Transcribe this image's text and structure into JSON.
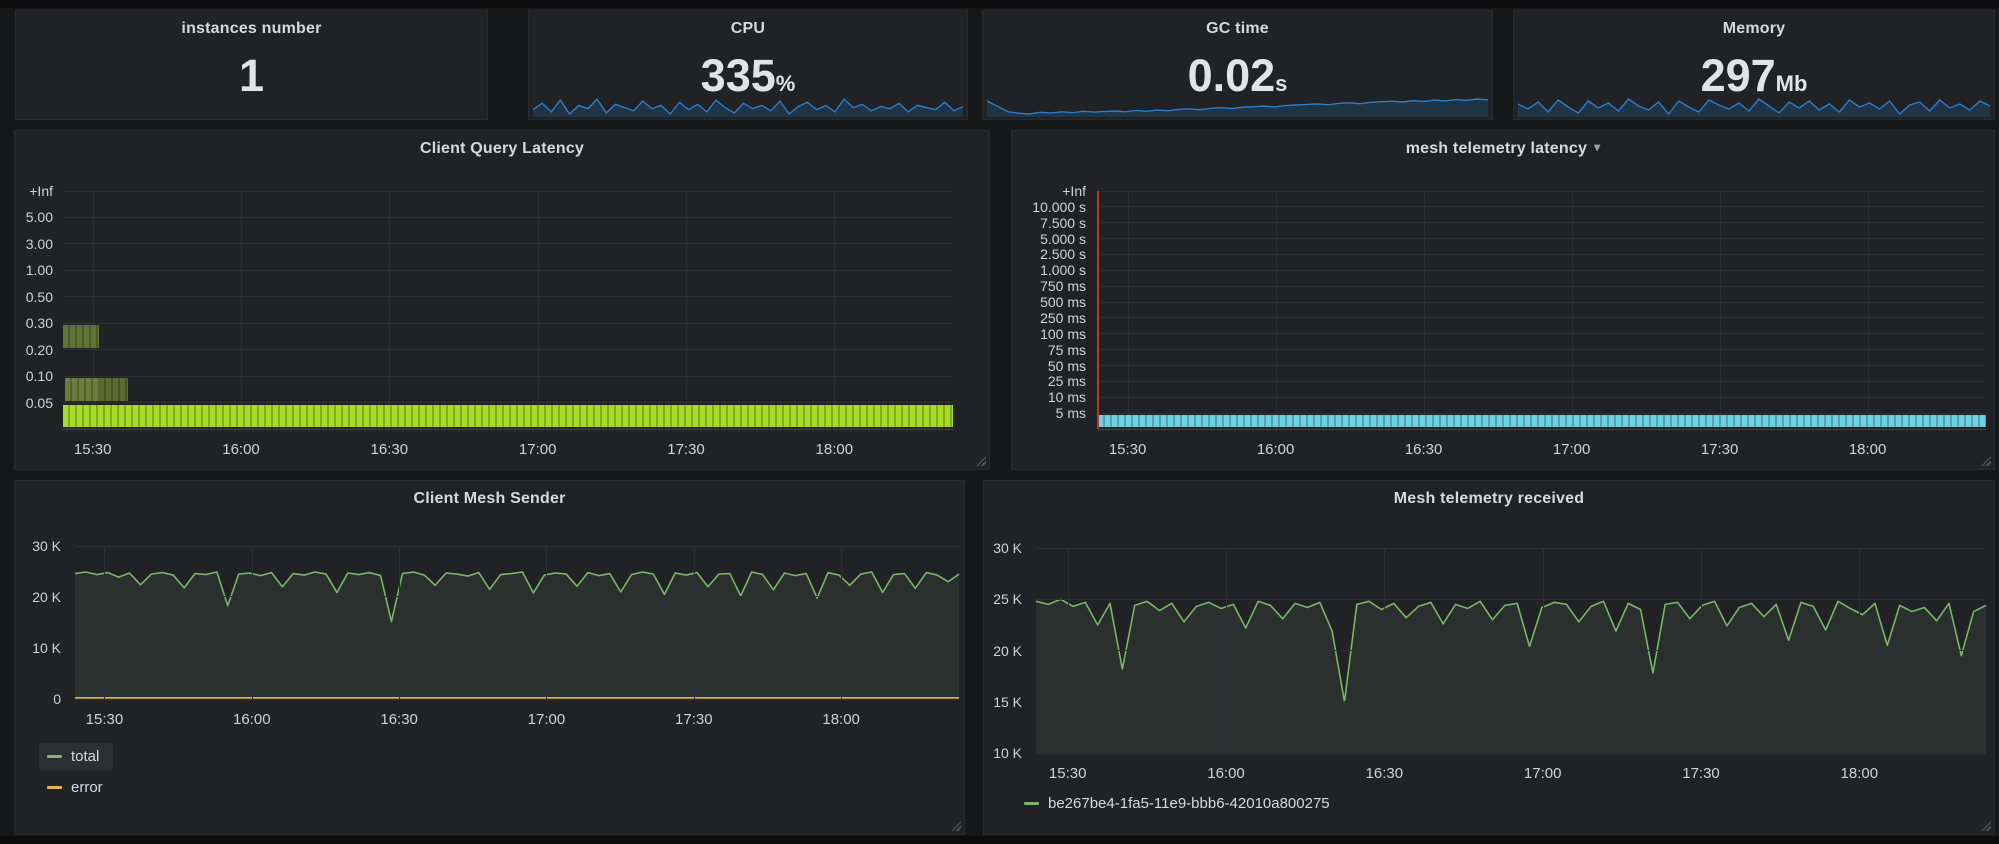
{
  "stat_panels": [
    {
      "title": "instances number",
      "value": "1",
      "unit": ""
    },
    {
      "title": "CPU",
      "value": "335",
      "unit": "%"
    },
    {
      "title": "GC time",
      "value": "0.02",
      "unit": "s"
    },
    {
      "title": "Memory",
      "value": "297",
      "unit": "Mb"
    }
  ],
  "chart_data": [
    {
      "id": "cpu-sparkline",
      "type": "line",
      "title": "CPU",
      "unit": "%",
      "current": 335,
      "color": "#2e7cc3",
      "fill": "rgba(31,120,193,0.22)",
      "values": [
        332,
        338,
        330,
        341,
        328,
        336,
        333,
        342,
        329,
        337,
        334,
        331,
        340,
        333,
        336,
        328,
        339,
        332,
        337,
        330,
        341,
        334,
        329,
        338,
        333,
        336,
        331,
        340,
        328,
        335,
        339,
        332,
        336,
        330,
        342,
        334,
        337,
        331,
        335,
        333,
        338,
        330,
        336,
        334,
        332,
        339,
        331,
        335
      ]
    },
    {
      "id": "gc-time-sparkline",
      "type": "line",
      "title": "GC time",
      "unit": "s",
      "current": 0.02,
      "color": "#2e7cc3",
      "fill": "rgba(31,120,193,0.22)",
      "values": [
        0.02,
        0.018,
        0.016,
        0.0155,
        0.0152,
        0.0158,
        0.0156,
        0.016,
        0.0157,
        0.0162,
        0.0159,
        0.0161,
        0.0163,
        0.016,
        0.0165,
        0.0162,
        0.0167,
        0.0164,
        0.0169,
        0.0171,
        0.0168,
        0.0173,
        0.0175,
        0.0172,
        0.0177,
        0.0179,
        0.0181,
        0.0178,
        0.0183,
        0.0185,
        0.0187,
        0.0189,
        0.0186,
        0.0191,
        0.0193,
        0.019,
        0.0195,
        0.0197,
        0.0199,
        0.0196,
        0.0201,
        0.0198,
        0.0203,
        0.02,
        0.0205,
        0.0202,
        0.0207,
        0.0204
      ]
    },
    {
      "id": "memory-sparkline",
      "type": "line",
      "title": "Memory",
      "unit": "Mb",
      "current": 297,
      "color": "#2e7cc3",
      "fill": "rgba(31,120,193,0.22)",
      "values": [
        293,
        288,
        295,
        285,
        297,
        290,
        284,
        296,
        289,
        294,
        286,
        298,
        291,
        287,
        295,
        283,
        296,
        290,
        285,
        297,
        292,
        288,
        294,
        286,
        298,
        291,
        284,
        295,
        289,
        296,
        287,
        293,
        285,
        297,
        290,
        294,
        288,
        296,
        283,
        292,
        295,
        286,
        297,
        289,
        293,
        287,
        296,
        291
      ]
    },
    {
      "id": "client-query-latency",
      "type": "heatmap",
      "title": "Client Query Latency",
      "x_ticks": [
        "15:30",
        "16:00",
        "16:30",
        "17:00",
        "17:30",
        "18:00"
      ],
      "y_bucket_bounds": [
        "+Inf",
        "5.00",
        "3.00",
        "1.00",
        "0.50",
        "0.30",
        "0.20",
        "0.10",
        "0.05"
      ],
      "cells": [
        {
          "bucket": "0.20-0.30",
          "row": 5,
          "x0": 0.0,
          "x1": 0.041,
          "color": "#5f7334"
        },
        {
          "bucket": "0.05-0.10",
          "row": 7,
          "x0": 0.002,
          "x1": 0.041,
          "color": "#6b7d3a"
        },
        {
          "bucket": "0.05-0.10",
          "row": 7,
          "x0": 0.041,
          "x1": 0.073,
          "color": "#596b2e"
        },
        {
          "bucket": "0.00-0.05",
          "row": 8,
          "x0": 0.0,
          "x1": 1.0,
          "color": "#a7dc26"
        }
      ]
    },
    {
      "id": "mesh-telemetry-latency",
      "type": "heatmap",
      "title": "mesh telemetry latency",
      "caret": "▾",
      "x_ticks": [
        "15:30",
        "16:00",
        "16:30",
        "17:00",
        "17:30",
        "18:00"
      ],
      "y_bucket_bounds": [
        "+Inf",
        "10.000 s",
        "7.500 s",
        "5.000 s",
        "2.500 s",
        "1.000 s",
        "750 ms",
        "500 ms",
        "250 ms",
        "100 ms",
        "75 ms",
        "50 ms",
        "25 ms",
        "10 ms",
        "5 ms"
      ],
      "inf_marker_color": "#b5382e",
      "cells": [
        {
          "bucket": "0-5 ms",
          "row": 14,
          "x0": 0.0,
          "x1": 1.0,
          "color": "#6ed0e0"
        }
      ]
    },
    {
      "id": "client-mesh-sender",
      "type": "line",
      "title": "Client Mesh Sender",
      "x_ticks": [
        "15:30",
        "16:00",
        "16:30",
        "17:00",
        "17:30",
        "18:00"
      ],
      "y_ticks": [
        "30 K",
        "20 K",
        "10 K",
        "0"
      ],
      "ylim": [
        0,
        30
      ],
      "unit": "K",
      "series": [
        {
          "name": "total",
          "color": "#7eb26d",
          "fill_opacity": 0.1,
          "values": [
            24.6,
            24.9,
            24.4,
            24.8,
            23.9,
            24.7,
            22.4,
            24.5,
            24.8,
            24.3,
            21.8,
            24.6,
            24.4,
            24.9,
            18.3,
            24.5,
            24.7,
            24.2,
            24.8,
            22.0,
            24.6,
            24.3,
            24.9,
            24.5,
            20.9,
            24.7,
            24.4,
            24.8,
            24.2,
            15.2,
            24.6,
            24.9,
            24.3,
            22.3,
            24.7,
            24.5,
            24.1,
            24.8,
            21.5,
            24.4,
            24.6,
            24.9,
            20.8,
            24.3,
            24.7,
            24.5,
            22.1,
            24.8,
            24.2,
            24.6,
            21.0,
            24.4,
            24.9,
            24.5,
            20.5,
            24.7,
            24.3,
            24.8,
            22.0,
            24.5,
            24.6,
            20.2,
            24.9,
            24.4,
            21.4,
            24.7,
            24.2,
            24.6,
            19.8,
            24.8,
            24.3,
            22.3,
            24.5,
            24.9,
            20.9,
            24.4,
            24.6,
            21.7,
            24.8,
            24.3,
            23.0,
            24.5
          ]
        },
        {
          "name": "error",
          "color": "#eab839",
          "fill_opacity": 0,
          "values": [
            0,
            0
          ]
        }
      ]
    },
    {
      "id": "mesh-telemetry-received",
      "type": "line",
      "title": "Mesh telemetry received",
      "x_ticks": [
        "15:30",
        "16:00",
        "16:30",
        "17:00",
        "17:30",
        "18:00"
      ],
      "y_ticks": [
        "30 K",
        "25 K",
        "20 K",
        "15 K",
        "10 K"
      ],
      "ylim": [
        10,
        30
      ],
      "unit": "K",
      "series": [
        {
          "name": "be267be4-1fa5-11e9-bbb6-42010a800275",
          "color": "#7eb26d",
          "fill_opacity": 0.1,
          "values": [
            24.8,
            24.5,
            25.0,
            24.3,
            24.7,
            22.5,
            24.6,
            18.2,
            24.4,
            24.8,
            23.9,
            24.6,
            22.8,
            24.3,
            24.7,
            24.1,
            24.5,
            22.2,
            24.8,
            24.4,
            23.1,
            24.6,
            24.2,
            24.7,
            21.9,
            15.0,
            24.5,
            24.8,
            24.0,
            24.6,
            23.2,
            24.3,
            24.7,
            22.6,
            24.5,
            24.1,
            24.8,
            23.0,
            24.4,
            24.6,
            20.4,
            24.2,
            24.7,
            24.5,
            22.8,
            24.3,
            24.8,
            21.9,
            24.6,
            24.0,
            17.8,
            24.5,
            24.7,
            23.1,
            24.4,
            24.8,
            22.4,
            24.2,
            24.6,
            23.3,
            24.5,
            21.0,
            24.7,
            24.3,
            22.0,
            24.8,
            24.1,
            23.5,
            24.6,
            20.5,
            24.4,
            23.8,
            24.2,
            22.9,
            24.6,
            19.5,
            23.8,
            24.4
          ]
        }
      ]
    }
  ]
}
